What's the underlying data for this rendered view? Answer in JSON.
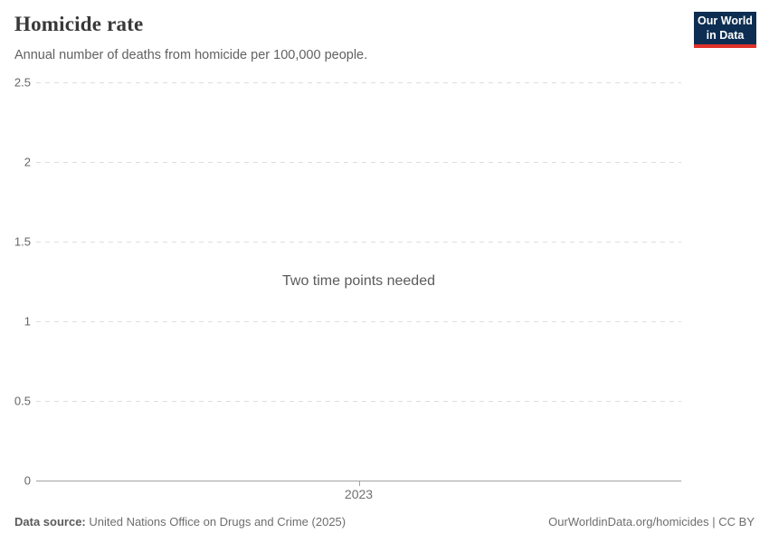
{
  "header": {
    "title": "Homicide rate",
    "subtitle": "Annual number of deaths from homicide per 100,000 people.",
    "logo": {
      "line1": "Our World",
      "line2": "in Data",
      "bg_color": "#0d2e52",
      "accent_color": "#e0312b"
    }
  },
  "chart_data": {
    "type": "line",
    "title": "Homicide rate",
    "subtitle": "Annual number of deaths from homicide per 100,000 people.",
    "empty_state_message": "Two time points needed",
    "series": [],
    "x_tick_labels": [
      "2023"
    ],
    "y_tick_labels": [
      2.5,
      2,
      1.5,
      1,
      0.5,
      0
    ],
    "ylim": [
      0,
      2.5
    ],
    "grid": "horizontal-dashed",
    "axis_color": "#a3a3a3",
    "gridline_color": "#dedede"
  },
  "footer": {
    "datasource_label": "Data source:",
    "datasource_value": "United Nations Office on Drugs and Crime (2025)",
    "credit": "OurWorldinData.org/homicides | CC BY"
  }
}
